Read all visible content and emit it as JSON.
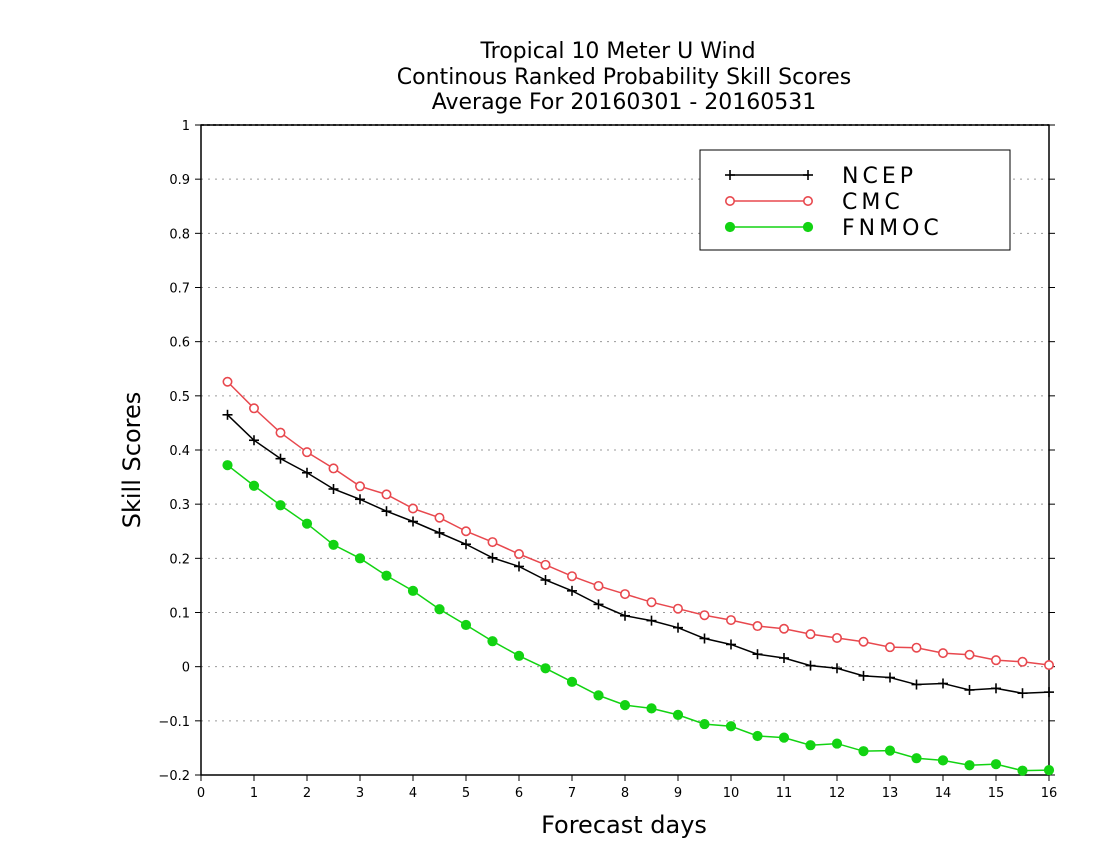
{
  "chart_data": {
    "type": "line",
    "title": [
      "Tropical 10 Meter U Wind",
      "Continous Ranked Probability Skill Scores",
      "Average For 20160301 - 20160531"
    ],
    "xlabel": "Forecast days",
    "ylabel": "Skill Scores",
    "xlim": [
      0,
      16
    ],
    "ylim": [
      -0.2,
      1
    ],
    "x_ticks": [
      "0",
      "1",
      "2",
      "3",
      "4",
      "5",
      "6",
      "7",
      "8",
      "9",
      "10",
      "11",
      "12",
      "13",
      "14",
      "15",
      "16"
    ],
    "y_ticks": [
      "−0.2",
      "−0.1",
      "0",
      "0.1",
      "0.2",
      "0.3",
      "0.4",
      "0.5",
      "0.6",
      "0.7",
      "0.8",
      "0.9",
      "1"
    ],
    "y_tick_values": [
      -0.2,
      -0.1,
      0,
      0.1,
      0.2,
      0.3,
      0.4,
      0.5,
      0.6,
      0.7,
      0.8,
      0.9,
      1
    ],
    "grid": "horizontal-dotted",
    "legend_position": "top-right",
    "x": [
      0.5,
      1,
      1.5,
      2,
      2.5,
      3,
      3.5,
      4,
      4.5,
      5,
      5.5,
      6,
      6.5,
      7,
      7.5,
      8,
      8.5,
      9,
      9.5,
      10,
      10.5,
      11,
      11.5,
      12,
      12.5,
      13,
      13.5,
      14,
      14.5,
      15,
      15.5,
      16
    ],
    "series": [
      {
        "name": "NCEP",
        "color": "#000000",
        "marker": "plus",
        "values": [
          0.465,
          0.418,
          0.384,
          0.358,
          0.328,
          0.309,
          0.287,
          0.268,
          0.247,
          0.226,
          0.201,
          0.185,
          0.16,
          0.14,
          0.115,
          0.094,
          0.085,
          0.072,
          0.052,
          0.041,
          0.023,
          0.016,
          0.002,
          -0.003,
          -0.017,
          -0.02,
          -0.033,
          -0.031,
          -0.043,
          -0.04,
          -0.049,
          -0.047
        ]
      },
      {
        "name": "CMC",
        "color": "#e8484e",
        "marker": "open-circle",
        "values": [
          0.526,
          0.477,
          0.432,
          0.396,
          0.366,
          0.333,
          0.318,
          0.292,
          0.275,
          0.25,
          0.23,
          0.208,
          0.188,
          0.167,
          0.149,
          0.134,
          0.119,
          0.107,
          0.095,
          0.086,
          0.075,
          0.07,
          0.06,
          0.053,
          0.046,
          0.036,
          0.035,
          0.025,
          0.022,
          0.012,
          0.009,
          0.003
        ]
      },
      {
        "name": "FNMOC",
        "color": "#12d312",
        "marker": "filled-circle",
        "values": [
          0.372,
          0.334,
          0.298,
          0.264,
          0.225,
          0.2,
          0.168,
          0.14,
          0.106,
          0.077,
          0.047,
          0.02,
          -0.003,
          -0.028,
          -0.053,
          -0.071,
          -0.077,
          -0.089,
          -0.106,
          -0.11,
          -0.128,
          -0.131,
          -0.145,
          -0.142,
          -0.156,
          -0.155,
          -0.169,
          -0.173,
          -0.182,
          -0.18,
          -0.192,
          -0.191
        ]
      }
    ]
  }
}
